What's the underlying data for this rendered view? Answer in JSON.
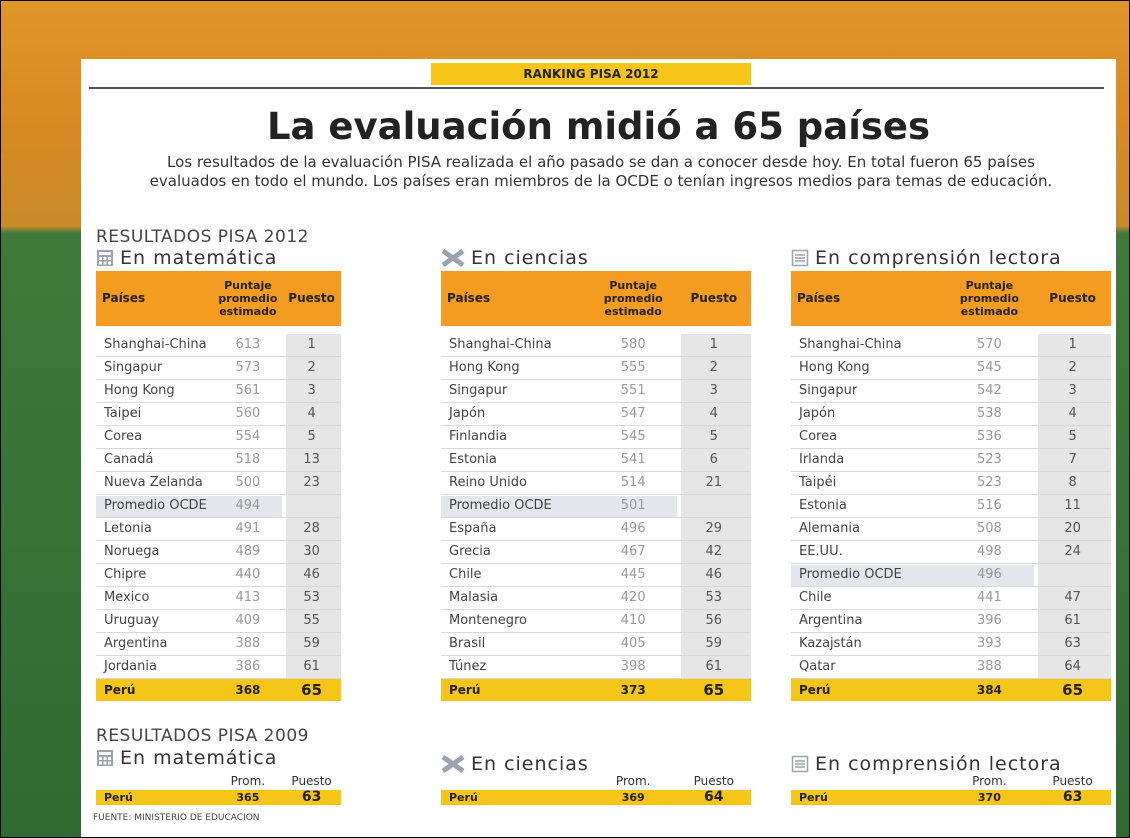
{
  "header": {
    "tag": "RANKING PISA 2012",
    "title": "La evaluación midió a 65 países",
    "intro": "Los resultados de la evaluación PISA realizada el año pasado se dan a conocer desde hoy. En total fueron 65 países evaluados en todo el mundo. Los países eran miembros de la OCDE o tenían ingresos medios para temas de educación."
  },
  "sections": [
    {
      "label": "RESULTADOS PISA 2012",
      "tables": [
        {
          "heading": "En matemática",
          "columns": [
            "Países",
            "Puntaje promedio estimado",
            "Puesto"
          ],
          "rows": [
            [
              "Shanghai-China",
              613,
              1
            ],
            [
              "Singapur",
              573,
              2
            ],
            [
              "Hong Kong",
              561,
              3
            ],
            [
              "Taipei",
              560,
              4
            ],
            [
              "Corea",
              554,
              5
            ],
            [
              "Canadá",
              518,
              13
            ],
            [
              "Nueva Zelanda",
              500,
              23
            ],
            [
              "Promedio OCDE",
              494,
              null
            ],
            [
              "Letonia",
              491,
              28
            ],
            [
              "Noruega",
              489,
              30
            ],
            [
              "Chipre",
              440,
              46
            ],
            [
              "Mexico",
              413,
              53
            ],
            [
              "Uruguay",
              409,
              55
            ],
            [
              "Argentina",
              388,
              59
            ],
            [
              "Jordania",
              386,
              61
            ],
            [
              "Perú",
              368,
              65
            ]
          ]
        },
        {
          "heading": "En ciencias",
          "columns": [
            "Países",
            "Puntaje promedio estimado",
            "Puesto"
          ],
          "rows": [
            [
              "Shanghai-China",
              580,
              1
            ],
            [
              "Hong Kong",
              555,
              2
            ],
            [
              "Singapur",
              551,
              3
            ],
            [
              "Japón",
              547,
              4
            ],
            [
              "Finlandia",
              545,
              5
            ],
            [
              "Estonia",
              541,
              6
            ],
            [
              "Reino Unido",
              514,
              21
            ],
            [
              "Promedio OCDE",
              501,
              null
            ],
            [
              "España",
              496,
              29
            ],
            [
              "Grecia",
              467,
              42
            ],
            [
              "Chile",
              445,
              46
            ],
            [
              "Malasia",
              420,
              53
            ],
            [
              "Montenegro",
              410,
              56
            ],
            [
              "Brasil",
              405,
              59
            ],
            [
              "Túnez",
              398,
              61
            ],
            [
              "Perú",
              373,
              65
            ]
          ]
        },
        {
          "heading": "En comprensión lectora",
          "columns": [
            "Países",
            "Puntaje promedio estimado",
            "Puesto"
          ],
          "rows": [
            [
              "Shanghai-China",
              570,
              1
            ],
            [
              "Hong Kong",
              545,
              2
            ],
            [
              "Singapur",
              542,
              3
            ],
            [
              "Japón",
              538,
              4
            ],
            [
              "Corea",
              536,
              5
            ],
            [
              "Irlanda",
              523,
              7
            ],
            [
              "Taipéi",
              523,
              8
            ],
            [
              "Estonia",
              516,
              11
            ],
            [
              "Alemania",
              508,
              20
            ],
            [
              "EE.UU.",
              498,
              24
            ],
            [
              "Promedio OCDE",
              496,
              null
            ],
            [
              "Chile",
              441,
              47
            ],
            [
              "Argentina",
              396,
              61
            ],
            [
              "Kazajstán",
              393,
              63
            ],
            [
              "Qatar",
              388,
              64
            ],
            [
              "Perú",
              384,
              65
            ]
          ]
        }
      ]
    },
    {
      "label": "RESULTADOS PISA 2009",
      "tables": [
        {
          "heading": "En matemática",
          "columns": [
            "Prom.",
            "Puesto"
          ],
          "rows": [
            [
              "Perú",
              365,
              63
            ]
          ]
        },
        {
          "heading": "En ciencias",
          "columns": [
            "Prom.",
            "Puesto"
          ],
          "rows": [
            [
              "Perú",
              369,
              64
            ]
          ]
        },
        {
          "heading": "En comprensión lectora",
          "columns": [
            "Prom.",
            "Puesto"
          ],
          "rows": [
            [
              "Perú",
              370,
              63
            ]
          ]
        }
      ]
    }
  ],
  "source": "FUENTE: MINISTERIO DE EDUCACION"
}
